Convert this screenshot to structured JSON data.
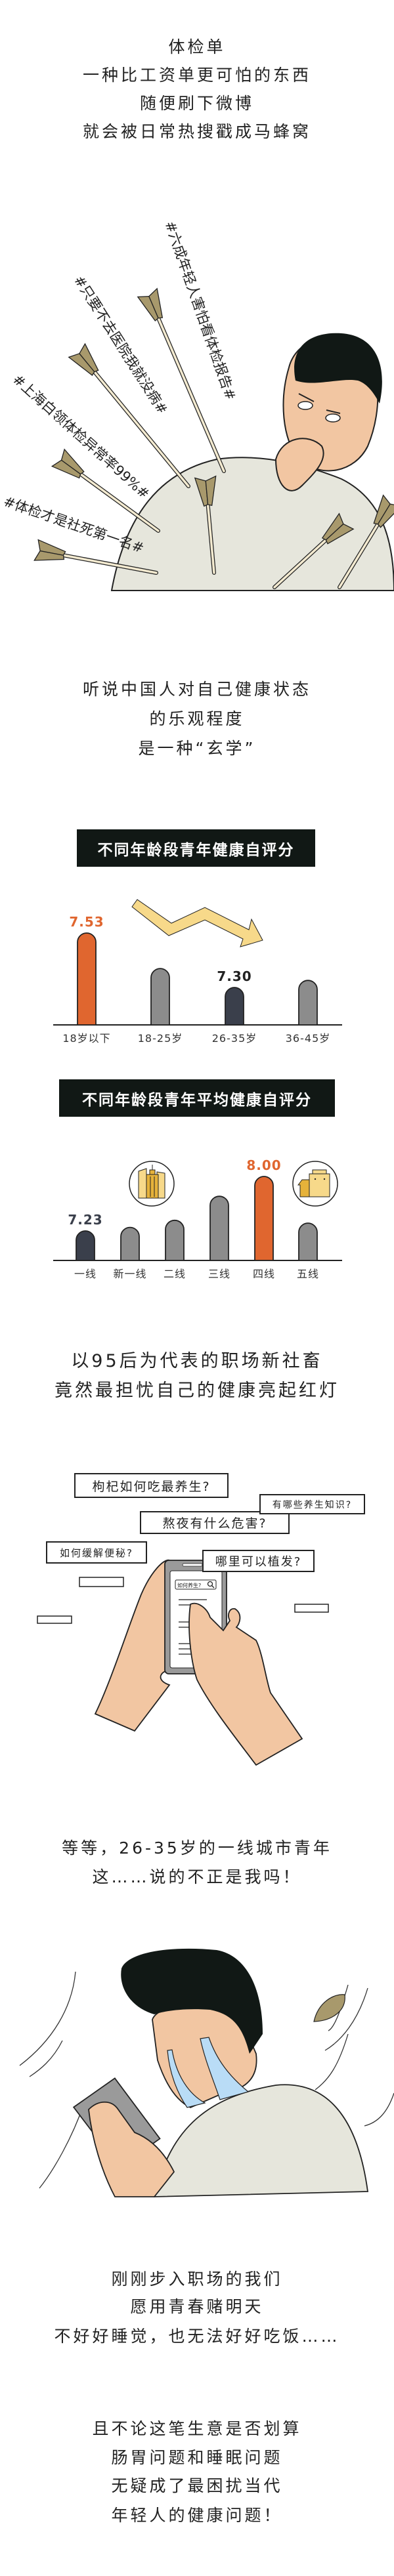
{
  "intro": {
    "lines": [
      "体检单",
      "一种比工资单更可怕的东西",
      "随便刷下微博",
      "就会被日常热搜戳成马蜂窝"
    ]
  },
  "hashtags": [
    "#六成年轻人害怕看体检报告#",
    "#只要不去医院我就没病#",
    "#上海白领体检异常率99%#",
    "#体检才是社死第一名#"
  ],
  "optimism": {
    "lines": [
      "听说中国人对自己健康状态",
      "的乐观程度",
      "是一种“玄学”"
    ]
  },
  "chart_data": [
    {
      "type": "bar",
      "title": "不同年龄段青年健康自评分",
      "categories": [
        "18岁以下",
        "18-25岁",
        "26-35岁",
        "36-45岁"
      ],
      "values": [
        7.53,
        7.38,
        7.3,
        7.33
      ],
      "data_labels": [
        "7.53",
        "",
        "7.30",
        ""
      ],
      "bar_colors": [
        "#e0662f",
        "#8c8c8c",
        "#3a3f4b",
        "#8c8c8c"
      ],
      "label_colors": [
        "#e0662f",
        "",
        "#222222",
        ""
      ],
      "trend": "down",
      "grid": false
    },
    {
      "type": "bar",
      "title": "不同年龄段青年平均健康自评分",
      "categories": [
        "一线",
        "新一线",
        "二线",
        "三线",
        "四线",
        "五线"
      ],
      "values": [
        7.23,
        7.28,
        7.38,
        7.72,
        8.0,
        7.34
      ],
      "data_labels": [
        "7.23",
        "",
        "",
        "",
        "8.00",
        ""
      ],
      "bar_colors": [
        "#3a3f4b",
        "#8c8c8c",
        "#8c8c8c",
        "#8c8c8c",
        "#e0662f",
        "#8c8c8c"
      ],
      "label_colors": [
        "#3a3f4b",
        "",
        "",
        "",
        "#e0662f",
        ""
      ],
      "icons": [
        "city-skyscraper-icon",
        "small-town-house-icon"
      ],
      "grid": false
    }
  ],
  "worry": {
    "lines": [
      "以95后为代表的职场新社畜",
      "竟然最担忧自己的健康亮起红灯"
    ]
  },
  "searches": {
    "bubbles": [
      "枸杞如何吃最养生?",
      "有哪些养生知识?",
      "熬夜有什么危害?",
      "如何缓解便秘?",
      "哪里可以植发?"
    ],
    "phone_search": "如何养生?"
  },
  "realize": {
    "lines": [
      "等等，26-35岁的一线城市青年",
      "这……说的不正是我吗！"
    ]
  },
  "outro1": {
    "lines": [
      "刚刚步入职场的我们",
      "愿用青春赌明天",
      "不好好睡觉，也无法好好吃饭……"
    ]
  },
  "outro2": {
    "lines": [
      "且不论这笔生意是否划算",
      "肠胃问题和睡眠问题",
      "无疑成了最困扰当代",
      "年轻人的健康问题！"
    ]
  },
  "colors": {
    "accent_orange": "#e0662f",
    "dark_bar": "#3a3f4b",
    "grey_bar": "#8c8c8c",
    "title_bg": "#111815",
    "skin": "#f2c6a2",
    "arrow_fletch": "#a8996c",
    "highlight_yellow": "#f7d98a"
  }
}
